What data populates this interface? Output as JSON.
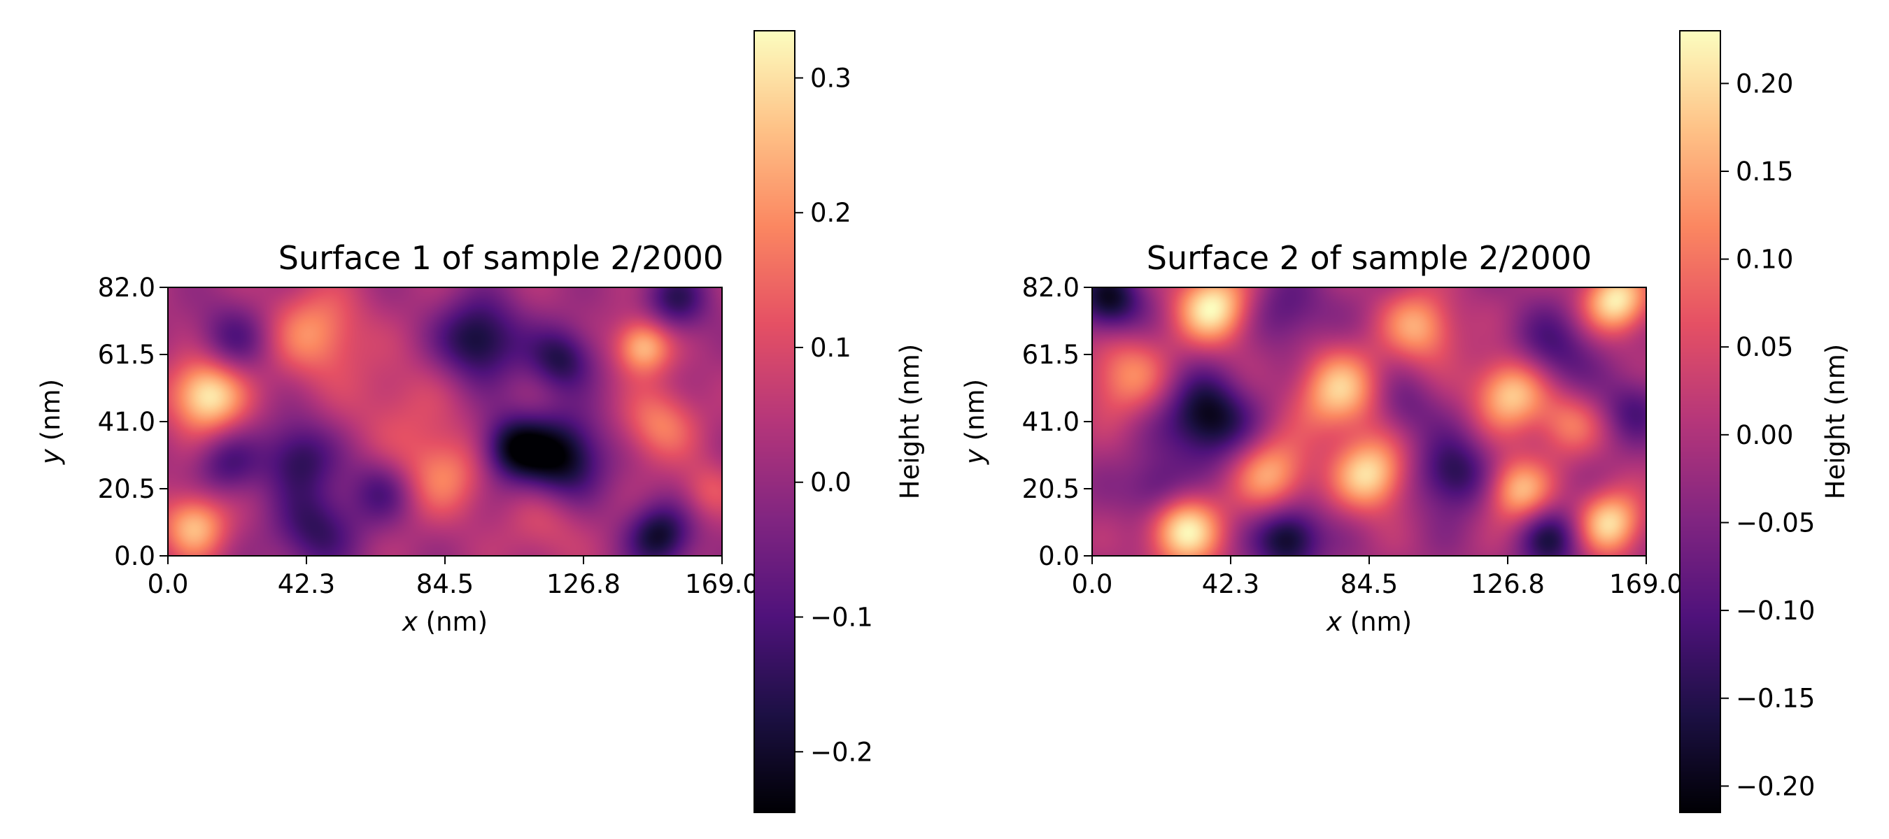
{
  "colormap": "magma",
  "colors": {
    "magma_stops": [
      "#000004",
      "#1c1044",
      "#4f127b",
      "#812581",
      "#b5367a",
      "#e55064",
      "#fb8761",
      "#fec287",
      "#fcfdbf"
    ],
    "frame": "#000000",
    "background": "#ffffff"
  },
  "chart_data": [
    {
      "type": "heatmap",
      "title": "Surface 1 of sample 2/2000",
      "xlabel": "x (nm)",
      "ylabel": "y (nm)",
      "xlabel_var": "x",
      "xlabel_unit": " (nm)",
      "ylabel_var": "y",
      "ylabel_unit": " (nm)",
      "xlim": [
        0.0,
        169.0
      ],
      "ylim": [
        0.0,
        82.0
      ],
      "xticks": [
        "0.0",
        "42.3",
        "84.5",
        "126.8",
        "169.0"
      ],
      "yticks": [
        "0.0",
        "20.5",
        "41.0",
        "61.5",
        "82.0"
      ],
      "colorbar": {
        "label": "Height (nm)",
        "range": [
          -0.245,
          0.335
        ],
        "ticks": [
          -0.2,
          -0.1,
          0.0,
          0.1,
          0.2,
          0.3
        ],
        "tick_labels": [
          "−0.2",
          "−0.1",
          "0.0",
          "0.1",
          "0.2",
          "0.3"
        ]
      },
      "features": [
        {
          "x": 12,
          "y": 49,
          "v": 0.33,
          "r": 8
        },
        {
          "x": 8,
          "y": 9,
          "v": 0.26,
          "r": 7
        },
        {
          "x": 45,
          "y": 68,
          "v": 0.2,
          "r": 10
        },
        {
          "x": 145,
          "y": 64,
          "v": 0.27,
          "r": 6
        },
        {
          "x": 150,
          "y": 40,
          "v": 0.18,
          "r": 8
        },
        {
          "x": 84,
          "y": 25,
          "v": 0.18,
          "r": 9
        },
        {
          "x": 115,
          "y": 10,
          "v": 0.1,
          "r": 9
        },
        {
          "x": 70,
          "y": 45,
          "v": 0.1,
          "r": 12
        },
        {
          "x": 165,
          "y": 20,
          "v": 0.12,
          "r": 6
        },
        {
          "x": 120,
          "y": 30,
          "v": -0.24,
          "r": 9
        },
        {
          "x": 105,
          "y": 33,
          "v": -0.2,
          "r": 7
        },
        {
          "x": 95,
          "y": 66,
          "v": -0.2,
          "r": 9
        },
        {
          "x": 120,
          "y": 60,
          "v": -0.16,
          "r": 7
        },
        {
          "x": 40,
          "y": 30,
          "v": -0.15,
          "r": 8
        },
        {
          "x": 45,
          "y": 8,
          "v": -0.14,
          "r": 9
        },
        {
          "x": 150,
          "y": 6,
          "v": -0.2,
          "r": 7
        },
        {
          "x": 155,
          "y": 78,
          "v": -0.14,
          "r": 7
        },
        {
          "x": 20,
          "y": 66,
          "v": -0.1,
          "r": 8
        },
        {
          "x": 18,
          "y": 28,
          "v": -0.1,
          "r": 7
        },
        {
          "x": 65,
          "y": 20,
          "v": -0.1,
          "r": 7
        }
      ]
    },
    {
      "type": "heatmap",
      "title": "Surface 2 of sample 2/2000",
      "xlabel": "x (nm)",
      "ylabel": "y (nm)",
      "xlabel_var": "x",
      "xlabel_unit": " (nm)",
      "ylabel_var": "y",
      "ylabel_unit": " (nm)",
      "xlim": [
        0.0,
        169.0
      ],
      "ylim": [
        0.0,
        82.0
      ],
      "xticks": [
        "0.0",
        "42.3",
        "84.5",
        "126.8",
        "169.0"
      ],
      "yticks": [
        "0.0",
        "20.5",
        "41.0",
        "61.5",
        "82.0"
      ],
      "colorbar": {
        "label": "Height (nm)",
        "range": [
          -0.215,
          0.23
        ],
        "ticks": [
          -0.2,
          -0.15,
          -0.1,
          -0.05,
          0.0,
          0.05,
          0.1,
          0.15,
          0.2
        ],
        "tick_labels": [
          "−0.20",
          "−0.15",
          "−0.10",
          "−0.05",
          "0.00",
          "0.05",
          "0.10",
          "0.15",
          "0.20"
        ]
      },
      "features": [
        {
          "x": 37,
          "y": 76,
          "v": 0.22,
          "r": 8
        },
        {
          "x": 28,
          "y": 8,
          "v": 0.22,
          "r": 8
        },
        {
          "x": 75,
          "y": 50,
          "v": 0.18,
          "r": 9
        },
        {
          "x": 85,
          "y": 25,
          "v": 0.2,
          "r": 8
        },
        {
          "x": 128,
          "y": 50,
          "v": 0.2,
          "r": 8
        },
        {
          "x": 160,
          "y": 78,
          "v": 0.22,
          "r": 7
        },
        {
          "x": 158,
          "y": 10,
          "v": 0.2,
          "r": 7
        },
        {
          "x": 130,
          "y": 20,
          "v": 0.17,
          "r": 7
        },
        {
          "x": 10,
          "y": 55,
          "v": 0.12,
          "r": 9
        },
        {
          "x": 55,
          "y": 25,
          "v": 0.15,
          "r": 8
        },
        {
          "x": 100,
          "y": 70,
          "v": 0.15,
          "r": 8
        },
        {
          "x": 145,
          "y": 40,
          "v": 0.1,
          "r": 7
        },
        {
          "x": 35,
          "y": 42,
          "v": -0.21,
          "r": 9
        },
        {
          "x": 60,
          "y": 5,
          "v": -0.2,
          "r": 7
        },
        {
          "x": 5,
          "y": 78,
          "v": -0.2,
          "r": 7
        },
        {
          "x": 110,
          "y": 25,
          "v": -0.16,
          "r": 8
        },
        {
          "x": 140,
          "y": 62,
          "v": -0.12,
          "r": 9
        },
        {
          "x": 140,
          "y": 5,
          "v": -0.15,
          "r": 7
        },
        {
          "x": 95,
          "y": 45,
          "v": -0.08,
          "r": 7
        },
        {
          "x": 60,
          "y": 75,
          "v": -0.1,
          "r": 8
        },
        {
          "x": 165,
          "y": 45,
          "v": -0.1,
          "r": 7
        },
        {
          "x": 20,
          "y": 20,
          "v": -0.12,
          "r": 7
        }
      ]
    }
  ]
}
